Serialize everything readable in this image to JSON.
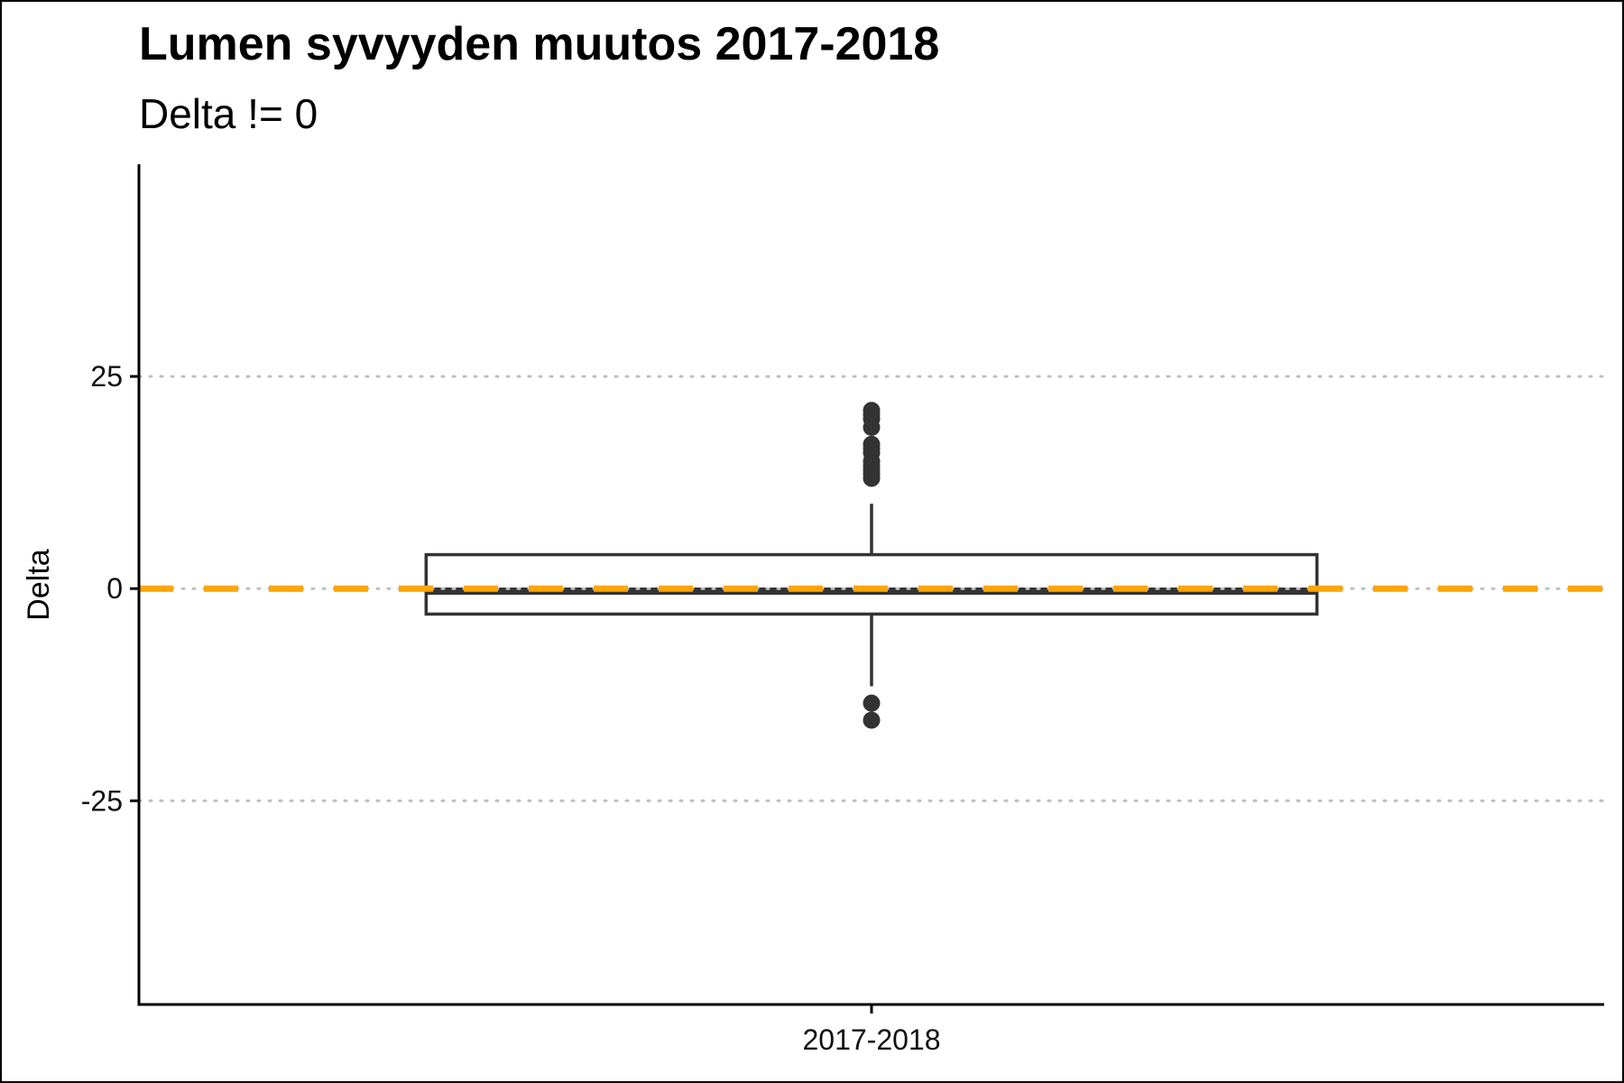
{
  "chart_data": {
    "type": "boxplot",
    "title": "Lumen syvyyden muutos 2017-2018",
    "subtitle": "Delta != 0",
    "xlabel": "",
    "ylabel": "Delta",
    "ylim": [
      -49,
      50
    ],
    "y_ticks": [
      -25,
      0,
      25
    ],
    "y_tick_labels": [
      "-25",
      "0",
      "25"
    ],
    "grid": "horizontal dotted at major ticks",
    "categories": [
      "2017-2018"
    ],
    "boxes": [
      {
        "category": "2017-2018",
        "whisker_low": -11.5,
        "q1": -3,
        "median": -0.3,
        "q3": 4,
        "whisker_high": 10,
        "outliers": [
          21,
          20.5,
          20,
          19,
          17,
          16.5,
          16,
          15,
          14.5,
          14,
          13.5,
          13,
          -13.5,
          -15.5
        ]
      }
    ],
    "reference_line": {
      "y": 0,
      "style": "dashed",
      "color": "#FFA500"
    },
    "colors": {
      "box_stroke": "#333333",
      "grid": "#BEBEBE",
      "axis": "#000000"
    }
  }
}
